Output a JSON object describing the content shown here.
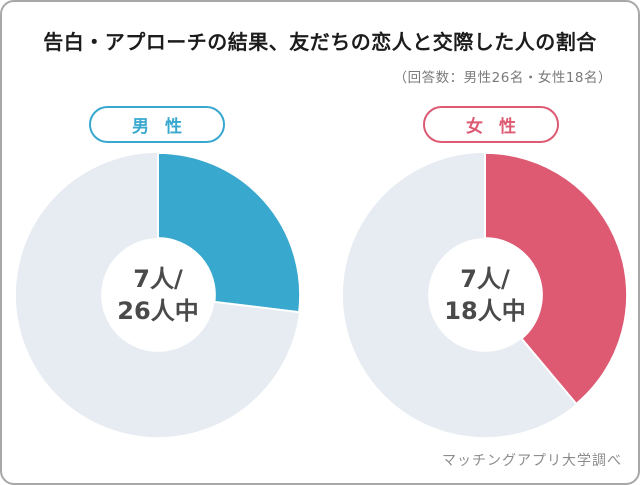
{
  "header": {
    "title": "告白・アプローチの結果、友だちの恋人と交際した人の割合",
    "note": "（回答数：男性26名・女性18名）"
  },
  "footer": {
    "source": "マッチングアプリ大学調べ"
  },
  "colors": {
    "male_accent": "#39a8ce",
    "female_accent": "#dd5a72",
    "track": "#e6ecf2",
    "center_text": "#4a4a4a",
    "title_text": "#1c1c1c",
    "note_text": "#7a7a7a",
    "source_text": "#8c8c8c",
    "page_border": "#a8a8a8"
  },
  "chart_data": [
    {
      "type": "pie",
      "title": "男 性",
      "value": 7,
      "total": 26,
      "fraction_pct": 26.9,
      "center_line1": "7人/",
      "center_line2": "26人中",
      "color": "#39a8ce",
      "track_color": "#e6ecf2",
      "start_angle_deg": 0,
      "direction": "clockwise",
      "donut_hole_ratio": 0.4,
      "legend_position": "top-badge"
    },
    {
      "type": "pie",
      "title": "女 性",
      "value": 7,
      "total": 18,
      "fraction_pct": 38.9,
      "center_line1": "7人/",
      "center_line2": "18人中",
      "color": "#dd5a72",
      "track_color": "#e6ecf2",
      "start_angle_deg": 0,
      "direction": "clockwise",
      "donut_hole_ratio": 0.4,
      "legend_position": "top-badge"
    }
  ]
}
